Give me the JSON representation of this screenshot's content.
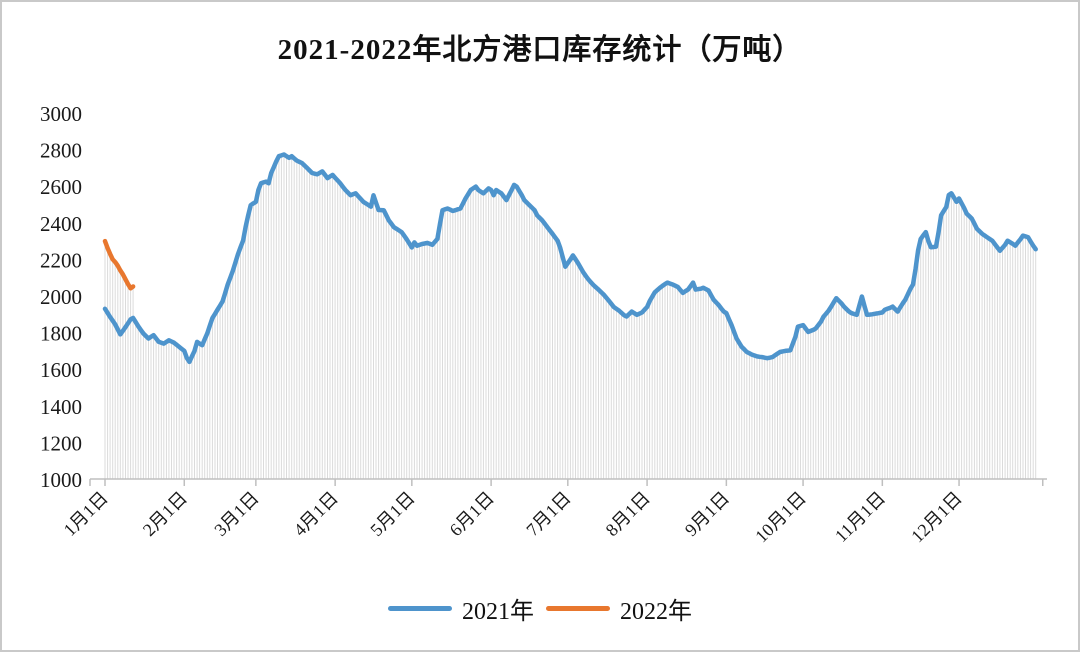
{
  "chart_data": {
    "type": "line",
    "title": "2021-2022年北方港口库存统计（万吨）",
    "ylabel": "",
    "xlabel": "",
    "ylim": [
      1000,
      3000
    ],
    "yticks": [
      1000,
      1200,
      1400,
      1600,
      1800,
      2000,
      2200,
      2400,
      2600,
      2800,
      3000
    ],
    "xticks": [
      {
        "label": "1月1日",
        "day": 1
      },
      {
        "label": "2月1日",
        "day": 32
      },
      {
        "label": "3月1日",
        "day": 60
      },
      {
        "label": "4月1日",
        "day": 91
      },
      {
        "label": "5月1日",
        "day": 121
      },
      {
        "label": "6月1日",
        "day": 152
      },
      {
        "label": "7月1日",
        "day": 182
      },
      {
        "label": "8月1日",
        "day": 213
      },
      {
        "label": "9月1日",
        "day": 244
      },
      {
        "label": "10月1日",
        "day": 274
      },
      {
        "label": "11月1日",
        "day": 305
      },
      {
        "label": "12月1日",
        "day": 335
      }
    ],
    "grid": false,
    "drop_lines": true,
    "legend_position": "bottom",
    "legend": [
      {
        "label": "2021年",
        "color": "#4E94CC"
      },
      {
        "label": "2022年",
        "color": "#E8772E"
      }
    ],
    "colors": {
      "axis": "#BFBFBF",
      "drop_line": "#DBDBDB",
      "text": "#1a1a1a"
    },
    "series": [
      {
        "name": "2021年",
        "color": "#4E94CC",
        "points": [
          [
            1,
            1930
          ],
          [
            3,
            1885
          ],
          [
            5,
            1845
          ],
          [
            7,
            1790
          ],
          [
            9,
            1830
          ],
          [
            11,
            1872
          ],
          [
            12,
            1880
          ],
          [
            14,
            1835
          ],
          [
            16,
            1795
          ],
          [
            18,
            1768
          ],
          [
            20,
            1786
          ],
          [
            22,
            1750
          ],
          [
            24,
            1740
          ],
          [
            26,
            1758
          ],
          [
            28,
            1745
          ],
          [
            30,
            1722
          ],
          [
            32,
            1700
          ],
          [
            33,
            1662
          ],
          [
            34,
            1640
          ],
          [
            36,
            1700
          ],
          [
            37,
            1749
          ],
          [
            39,
            1731
          ],
          [
            41,
            1796
          ],
          [
            43,
            1879
          ],
          [
            45,
            1925
          ],
          [
            47,
            1971
          ],
          [
            49,
            2063
          ],
          [
            51,
            2137
          ],
          [
            53,
            2229
          ],
          [
            55,
            2303
          ],
          [
            56,
            2377
          ],
          [
            57,
            2441
          ],
          [
            58,
            2496
          ],
          [
            59,
            2506
          ],
          [
            60,
            2515
          ],
          [
            61,
            2579
          ],
          [
            62,
            2616
          ],
          [
            64,
            2625
          ],
          [
            65,
            2616
          ],
          [
            66,
            2672
          ],
          [
            68,
            2736
          ],
          [
            69,
            2764
          ],
          [
            71,
            2773
          ],
          [
            73,
            2755
          ],
          [
            74,
            2764
          ],
          [
            76,
            2740
          ],
          [
            78,
            2727
          ],
          [
            80,
            2700
          ],
          [
            82,
            2672
          ],
          [
            84,
            2665
          ],
          [
            86,
            2681
          ],
          [
            88,
            2644
          ],
          [
            90,
            2662
          ],
          [
            93,
            2616
          ],
          [
            95,
            2579
          ],
          [
            97,
            2551
          ],
          [
            99,
            2561
          ],
          [
            102,
            2515
          ],
          [
            105,
            2488
          ],
          [
            106,
            2550
          ],
          [
            108,
            2470
          ],
          [
            110,
            2469
          ],
          [
            112,
            2413
          ],
          [
            114,
            2376
          ],
          [
            117,
            2349
          ],
          [
            119,
            2310
          ],
          [
            121,
            2265
          ],
          [
            122,
            2293
          ],
          [
            123,
            2275
          ],
          [
            125,
            2284
          ],
          [
            127,
            2290
          ],
          [
            129,
            2280
          ],
          [
            131,
            2312
          ],
          [
            132,
            2395
          ],
          [
            133,
            2469
          ],
          [
            135,
            2478
          ],
          [
            137,
            2465
          ],
          [
            138,
            2469
          ],
          [
            140,
            2478
          ],
          [
            142,
            2533
          ],
          [
            144,
            2579
          ],
          [
            146,
            2598
          ],
          [
            147,
            2579
          ],
          [
            149,
            2561
          ],
          [
            151,
            2588
          ],
          [
            152,
            2579
          ],
          [
            153,
            2551
          ],
          [
            154,
            2579
          ],
          [
            156,
            2561
          ],
          [
            158,
            2524
          ],
          [
            160,
            2579
          ],
          [
            161,
            2607
          ],
          [
            162,
            2598
          ],
          [
            164,
            2551
          ],
          [
            165,
            2524
          ],
          [
            167,
            2496
          ],
          [
            169,
            2469
          ],
          [
            170,
            2441
          ],
          [
            172,
            2413
          ],
          [
            174,
            2376
          ],
          [
            176,
            2340
          ],
          [
            178,
            2302
          ],
          [
            179,
            2265
          ],
          [
            181,
            2160
          ],
          [
            183,
            2200
          ],
          [
            184,
            2222
          ],
          [
            186,
            2180
          ],
          [
            188,
            2130
          ],
          [
            190,
            2091
          ],
          [
            192,
            2060
          ],
          [
            194,
            2035
          ],
          [
            196,
            2008
          ],
          [
            198,
            1975
          ],
          [
            200,
            1940
          ],
          [
            202,
            1920
          ],
          [
            204,
            1895
          ],
          [
            205,
            1888
          ],
          [
            207,
            1915
          ],
          [
            209,
            1897
          ],
          [
            211,
            1910
          ],
          [
            213,
            1940
          ],
          [
            214,
            1971
          ],
          [
            216,
            2020
          ],
          [
            218,
            2045
          ],
          [
            220,
            2065
          ],
          [
            221,
            2073
          ],
          [
            223,
            2063
          ],
          [
            225,
            2050
          ],
          [
            227,
            2017
          ],
          [
            229,
            2035
          ],
          [
            231,
            2073
          ],
          [
            232,
            2035
          ],
          [
            234,
            2040
          ],
          [
            235,
            2045
          ],
          [
            237,
            2030
          ],
          [
            239,
            1980
          ],
          [
            241,
            1950
          ],
          [
            243,
            1915
          ],
          [
            244,
            1906
          ],
          [
            246,
            1842
          ],
          [
            248,
            1768
          ],
          [
            250,
            1722
          ],
          [
            252,
            1694
          ],
          [
            254,
            1680
          ],
          [
            256,
            1670
          ],
          [
            258,
            1666
          ],
          [
            260,
            1660
          ],
          [
            262,
            1666
          ],
          [
            264,
            1685
          ],
          [
            265,
            1694
          ],
          [
            267,
            1700
          ],
          [
            269,
            1703
          ],
          [
            271,
            1777
          ],
          [
            272,
            1832
          ],
          [
            274,
            1841
          ],
          [
            276,
            1804
          ],
          [
            278,
            1815
          ],
          [
            279,
            1823
          ],
          [
            281,
            1860
          ],
          [
            282,
            1887
          ],
          [
            284,
            1920
          ],
          [
            285,
            1942
          ],
          [
            287,
            1988
          ],
          [
            289,
            1960
          ],
          [
            290,
            1942
          ],
          [
            292,
            1915
          ],
          [
            293,
            1906
          ],
          [
            295,
            1897
          ],
          [
            297,
            1997
          ],
          [
            299,
            1897
          ],
          [
            301,
            1900
          ],
          [
            303,
            1905
          ],
          [
            305,
            1910
          ],
          [
            306,
            1925
          ],
          [
            308,
            1935
          ],
          [
            309,
            1942
          ],
          [
            311,
            1915
          ],
          [
            313,
            1960
          ],
          [
            314,
            1980
          ],
          [
            316,
            2040
          ],
          [
            317,
            2063
          ],
          [
            318,
            2150
          ],
          [
            319,
            2250
          ],
          [
            320,
            2312
          ],
          [
            322,
            2349
          ],
          [
            323,
            2300
          ],
          [
            324,
            2266
          ],
          [
            326,
            2270
          ],
          [
            327,
            2350
          ],
          [
            328,
            2441
          ],
          [
            330,
            2487
          ],
          [
            331,
            2552
          ],
          [
            332,
            2561
          ],
          [
            334,
            2515
          ],
          [
            335,
            2533
          ],
          [
            337,
            2480
          ],
          [
            338,
            2450
          ],
          [
            340,
            2423
          ],
          [
            342,
            2367
          ],
          [
            344,
            2340
          ],
          [
            346,
            2321
          ],
          [
            348,
            2302
          ],
          [
            350,
            2265
          ],
          [
            351,
            2247
          ],
          [
            353,
            2280
          ],
          [
            354,
            2302
          ],
          [
            356,
            2285
          ],
          [
            357,
            2275
          ],
          [
            359,
            2310
          ],
          [
            360,
            2330
          ],
          [
            362,
            2321
          ],
          [
            364,
            2275
          ],
          [
            365,
            2256
          ]
        ]
      },
      {
        "name": "2022年",
        "color": "#E8772E",
        "points": [
          [
            1,
            2300
          ],
          [
            2,
            2262
          ],
          [
            3,
            2230
          ],
          [
            4,
            2200
          ],
          [
            5,
            2185
          ],
          [
            6,
            2165
          ],
          [
            7,
            2140
          ],
          [
            8,
            2118
          ],
          [
            9,
            2091
          ],
          [
            10,
            2065
          ],
          [
            11,
            2042
          ],
          [
            12,
            2052
          ]
        ]
      }
    ]
  }
}
